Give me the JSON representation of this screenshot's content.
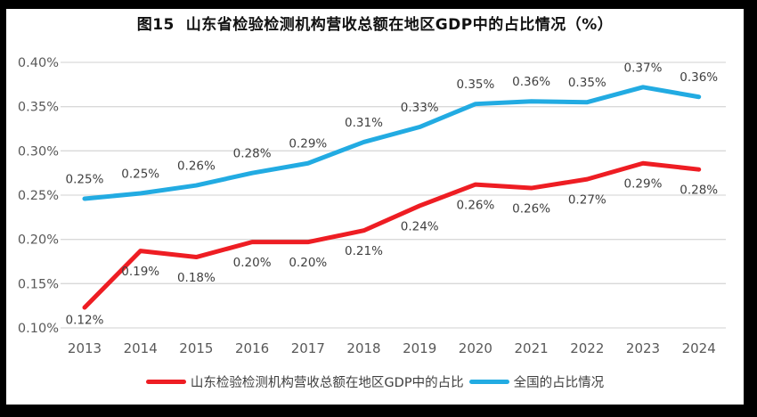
{
  "colors": {
    "frame": "#000000",
    "background": "#ffffff",
    "grid": "#d9d9d9",
    "axis_tick_text": "#595959",
    "data_label_text": "#3f3f3f",
    "series_red": "#ee1d23",
    "series_blue": "#22abe2"
  },
  "chart_data": {
    "type": "line",
    "title": "图15  山东省检验检测机构营收总额在地区GDP中的占比情况（%）",
    "categories": [
      "2013",
      "2014",
      "2015",
      "2016",
      "2017",
      "2018",
      "2019",
      "2020",
      "2021",
      "2022",
      "2023",
      "2024"
    ],
    "series": [
      {
        "name": "山东检验检测机构营收总额在地区GDP中的占比",
        "color": "#ee1d23",
        "values": [
          0.12,
          0.19,
          0.18,
          0.2,
          0.2,
          0.21,
          0.24,
          0.26,
          0.26,
          0.27,
          0.29,
          0.28
        ],
        "labels": [
          "0.12%",
          "0.19%",
          "0.18%",
          "0.20%",
          "0.20%",
          "0.21%",
          "0.24%",
          "0.26%",
          "0.26%",
          "0.27%",
          "0.29%",
          "0.28%"
        ],
        "plot_values": [
          0.123,
          0.187,
          0.18,
          0.197,
          0.197,
          0.21,
          0.238,
          0.262,
          0.258,
          0.268,
          0.286,
          0.279
        ],
        "label_side": "below"
      },
      {
        "name": "全国的占比情况",
        "color": "#22abe2",
        "values": [
          0.25,
          0.25,
          0.26,
          0.28,
          0.29,
          0.31,
          0.33,
          0.35,
          0.36,
          0.35,
          0.37,
          0.36
        ],
        "labels": [
          "0.25%",
          "0.25%",
          "0.26%",
          "0.28%",
          "0.29%",
          "0.31%",
          "0.33%",
          "0.35%",
          "0.36%",
          "0.35%",
          "0.37%",
          "0.36%"
        ],
        "plot_values": [
          0.246,
          0.252,
          0.261,
          0.275,
          0.286,
          0.31,
          0.327,
          0.353,
          0.356,
          0.355,
          0.372,
          0.361
        ],
        "label_side": "above"
      }
    ],
    "xlabel": "",
    "ylabel": "",
    "y_axis": {
      "min": 0.1,
      "max": 0.4,
      "step": 0.05,
      "tick_labels": [
        "0.40%",
        "0.35%",
        "0.30%",
        "0.25%",
        "0.20%",
        "0.15%",
        "0.10%"
      ]
    },
    "grid": "horizontal",
    "legend_position": "bottom"
  }
}
